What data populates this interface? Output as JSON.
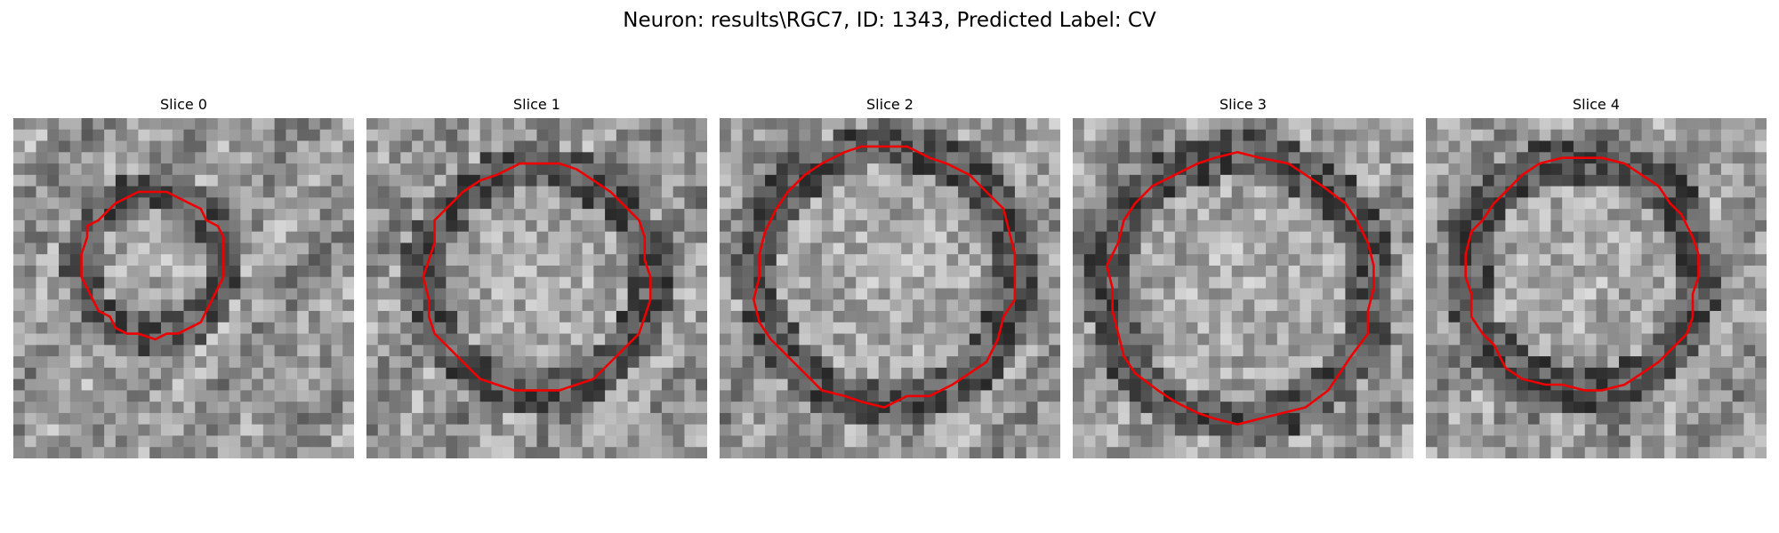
{
  "figure": {
    "title": "Neuron: results\\RGC7, ID: 1343, Predicted Label: CV"
  },
  "panels": [
    {
      "title": "Slice 0"
    },
    {
      "title": "Slice 1"
    },
    {
      "title": "Slice 2"
    },
    {
      "title": "Slice 3"
    },
    {
      "title": "Slice 4"
    }
  ],
  "colors": {
    "contour": "#ee0000",
    "background": "#ffffff"
  }
}
